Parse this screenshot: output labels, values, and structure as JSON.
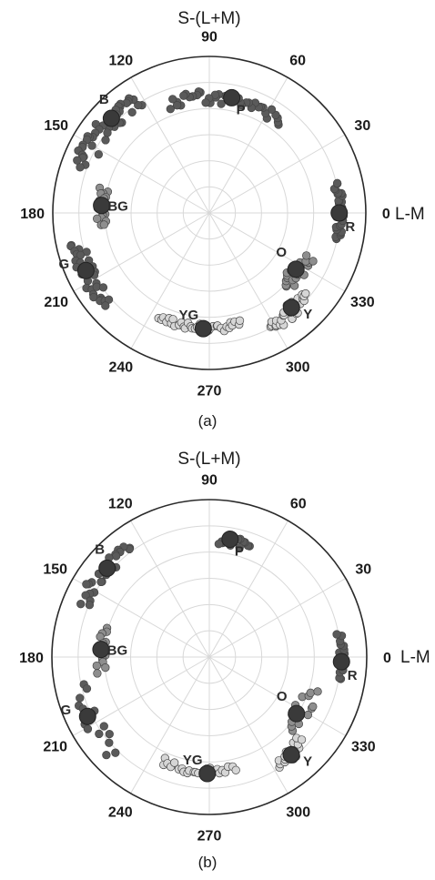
{
  "chart_data": [
    {
      "type": "scatter",
      "panel_label": "(a)",
      "title": "S-(L+M)",
      "xlabel": "L-M",
      "angle_ticks": [
        "0",
        "30",
        "60",
        "90",
        "120",
        "150",
        "180",
        "210",
        "240",
        "270",
        "300",
        "330"
      ],
      "radius_range": [
        0,
        1
      ],
      "grid": true,
      "colors": {
        "dark": "#5a5a5a",
        "mid": "#8e8e8e",
        "light": "#d6d6d6",
        "centroid": "#3a3a3a"
      },
      "series": [
        {
          "name": "P",
          "shade": "dark",
          "angle_range": [
            52,
            110
          ],
          "radius_range": [
            0.7,
            0.78
          ],
          "count": 40,
          "centroid": {
            "angle": 79,
            "radius": 0.75
          }
        },
        {
          "name": "B",
          "shade": "dark",
          "angle_range": [
            122,
            160
          ],
          "radius_range": [
            0.8,
            0.93
          ],
          "count": 40,
          "centroid": {
            "angle": 136,
            "radius": 0.87
          }
        },
        {
          "name": "BG",
          "shade": "mid",
          "angle_range": [
            167,
            187
          ],
          "radius_range": [
            0.66,
            0.72
          ],
          "count": 18,
          "centroid": {
            "angle": 176,
            "radius": 0.69
          }
        },
        {
          "name": "G",
          "shade": "dark",
          "angle_range": [
            193,
            222
          ],
          "radius_range": [
            0.82,
            0.92
          ],
          "count": 32,
          "centroid": {
            "angle": 205,
            "radius": 0.87
          }
        },
        {
          "name": "YG",
          "shade": "light",
          "angle_range": [
            244,
            286
          ],
          "radius_range": [
            0.71,
            0.76
          ],
          "count": 34,
          "centroid": {
            "angle": 267,
            "radius": 0.74
          }
        },
        {
          "name": "Y",
          "shade": "light",
          "angle_range": [
            298,
            320
          ],
          "radius_range": [
            0.77,
            0.86
          ],
          "count": 28,
          "centroid": {
            "angle": 311,
            "radius": 0.8
          }
        },
        {
          "name": "O",
          "shade": "mid",
          "angle_range": [
            316,
            336
          ],
          "radius_range": [
            0.62,
            0.74
          ],
          "count": 22,
          "centroid": {
            "angle": 327,
            "radius": 0.66
          }
        },
        {
          "name": "R",
          "shade": "dark",
          "angle_range": [
            -12,
            13
          ],
          "radius_range": [
            0.81,
            0.86
          ],
          "count": 30,
          "centroid": {
            "angle": 0,
            "radius": 0.83
          }
        }
      ]
    },
    {
      "type": "scatter",
      "panel_label": "(b)",
      "title": "S-(L+M)",
      "xlabel": "L-M",
      "angle_ticks": [
        "0",
        "30",
        "60",
        "90",
        "120",
        "150",
        "180",
        "210",
        "240",
        "270",
        "300",
        "330"
      ],
      "radius_range": [
        0,
        1
      ],
      "grid": true,
      "colors": {
        "dark": "#5a5a5a",
        "mid": "#8e8e8e",
        "light": "#d6d6d6",
        "centroid": "#3a3a3a"
      },
      "series": [
        {
          "name": "P",
          "shade": "dark",
          "angle_range": [
            70,
            85
          ],
          "radius_range": [
            0.72,
            0.78
          ],
          "count": 14,
          "centroid": {
            "angle": 80,
            "radius": 0.76
          }
        },
        {
          "name": "B",
          "shade": "dark",
          "angle_range": [
            126,
            157
          ],
          "radius_range": [
            0.82,
            0.92
          ],
          "count": 26,
          "centroid": {
            "angle": 139,
            "radius": 0.86
          }
        },
        {
          "name": "BG",
          "shade": "mid",
          "angle_range": [
            164,
            188
          ],
          "radius_range": [
            0.66,
            0.72
          ],
          "count": 14,
          "centroid": {
            "angle": 176,
            "radius": 0.69
          }
        },
        {
          "name": "G",
          "shade": "dark",
          "angle_range": [
            192,
            226
          ],
          "radius_range": [
            0.8,
            0.91
          ],
          "count": 14,
          "centroid": {
            "angle": 206,
            "radius": 0.86
          }
        },
        {
          "name": "YG",
          "shade": "light",
          "angle_range": [
            246,
            283
          ],
          "radius_range": [
            0.7,
            0.75
          ],
          "count": 24,
          "centroid": {
            "angle": 269,
            "radius": 0.74
          }
        },
        {
          "name": "Y",
          "shade": "light",
          "angle_range": [
            302,
            318
          ],
          "radius_range": [
            0.75,
            0.84
          ],
          "count": 16,
          "centroid": {
            "angle": 310,
            "radius": 0.81
          }
        },
        {
          "name": "O",
          "shade": "mid",
          "angle_range": [
            318,
            342
          ],
          "radius_range": [
            0.62,
            0.73
          ],
          "count": 14,
          "centroid": {
            "angle": 327,
            "radius": 0.66
          }
        },
        {
          "name": "R",
          "shade": "dark",
          "angle_range": [
            -10,
            10
          ],
          "radius_range": [
            0.82,
            0.86
          ],
          "count": 16,
          "centroid": {
            "angle": 358,
            "radius": 0.84
          }
        }
      ]
    }
  ]
}
